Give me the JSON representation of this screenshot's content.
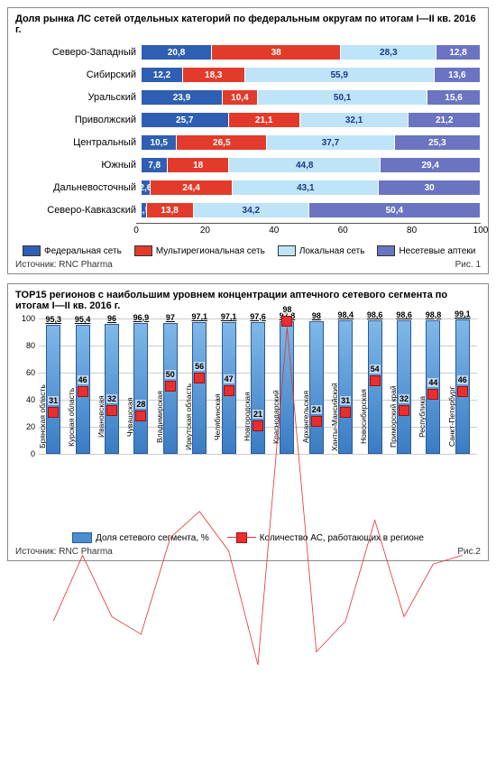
{
  "chart1": {
    "title": "Доля рынка ЛС сетей отдельных категорий по федеральным округам по итогам I—II кв. 2016 г.",
    "type": "stacked-bar-horizontal",
    "xlim": [
      0,
      100
    ],
    "xtick_step": 20,
    "series": [
      {
        "name": "Федеральная сеть",
        "color": "#2e5fb2"
      },
      {
        "name": "Мультирегиональная сеть",
        "color": "#e23b2b"
      },
      {
        "name": "Локальная сеть",
        "color": "#bfe3f7"
      },
      {
        "name": "Несетевые аптеки",
        "color": "#6a74c0"
      }
    ],
    "rows": [
      {
        "label": "Северо-Западный",
        "values": [
          20.8,
          38.0,
          28.3,
          12.8
        ]
      },
      {
        "label": "Сибирский",
        "values": [
          12.2,
          18.3,
          55.9,
          13.6
        ]
      },
      {
        "label": "Уральский",
        "values": [
          23.9,
          10.4,
          50.1,
          15.6
        ]
      },
      {
        "label": "Приволжский",
        "values": [
          25.7,
          21.1,
          32.1,
          21.2
        ]
      },
      {
        "label": "Центральный",
        "values": [
          10.5,
          26.5,
          37.7,
          25.3
        ]
      },
      {
        "label": "Южный",
        "values": [
          7.8,
          18.0,
          44.8,
          29.4
        ]
      },
      {
        "label": "Дальневосточный",
        "values": [
          2.6,
          24.4,
          43.1,
          30.0
        ]
      },
      {
        "label": "Северо-Кавказский",
        "values": [
          1.5,
          13.8,
          34.2,
          50.4
        ]
      }
    ],
    "source": "Источник: RNC Pharma",
    "fig_label": "Рис. 1",
    "value_fontsize": 10,
    "label_fontsize": 11,
    "light_text_color": "#1a3a8a",
    "dark_text_color": "#ffffff"
  },
  "chart2": {
    "title": "TOP15 регионов с наибольшим уровнем концентрации аптечного сетевого сегмента по итогам I—II кв. 2016 г.",
    "type": "bar-with-line",
    "ylim": [
      0,
      100
    ],
    "ytick_step": 20,
    "bar_color": "#4a8fd0",
    "line_color": "#e72f2f",
    "marker_color": "#e72f2f",
    "bar_series_name": "Доля сетевого сегмента, %",
    "line_series_name": "Количество АС, работающих в регионе",
    "items": [
      {
        "label": "Брянская область",
        "bar": 95.3,
        "line": 31
      },
      {
        "label": "Курская область",
        "bar": 95.4,
        "line": 46
      },
      {
        "label": "Ивановская область",
        "bar": 96.0,
        "line": 32
      },
      {
        "label": "Чувашская Республика",
        "bar": 96.9,
        "line": 28
      },
      {
        "label": "Владимирская область",
        "bar": 97.0,
        "line": 50
      },
      {
        "label": "Иркутская область",
        "bar": 97.1,
        "line": 56
      },
      {
        "label": "Челябинская область",
        "bar": 97.1,
        "line": 47
      },
      {
        "label": "Новгородская область",
        "bar": 97.6,
        "line": 21
      },
      {
        "label": "Краснодарский край",
        "bar": 97.8,
        "line": 98
      },
      {
        "label": "Архангельская область",
        "bar": 98.0,
        "line": 24
      },
      {
        "label": "Ханты-Мансийский АО",
        "bar": 98.4,
        "line": 31
      },
      {
        "label": "Новосибирская область",
        "bar": 98.6,
        "line": 54
      },
      {
        "label": "Приморский край",
        "bar": 98.6,
        "line": 32
      },
      {
        "label": "Республика Башкортостан",
        "bar": 98.8,
        "line": 44
      },
      {
        "label": "Санкт-Петербург",
        "bar": 99.1,
        "line": 46
      }
    ],
    "source": "Источник: RNC Pharma",
    "fig_label": "Рис.2"
  }
}
